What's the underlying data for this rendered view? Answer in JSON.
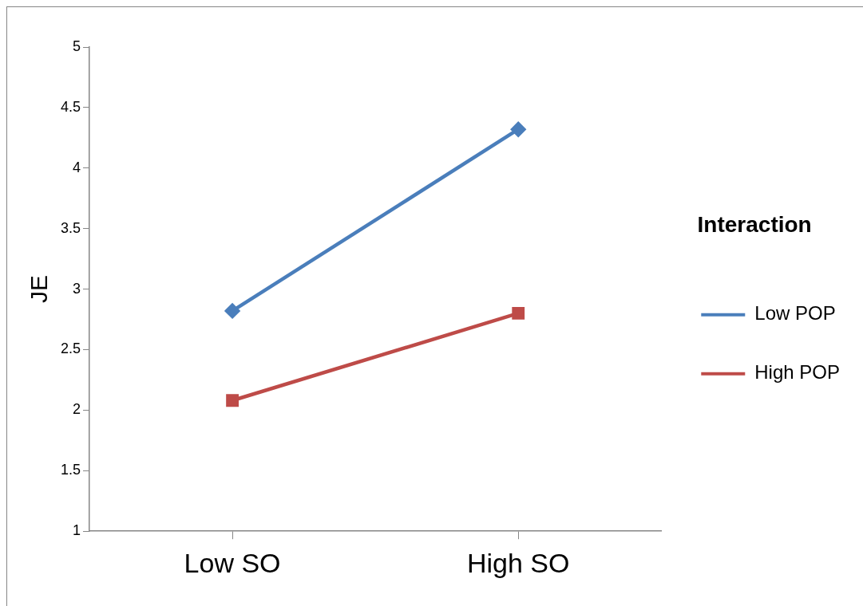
{
  "chart_data": {
    "type": "line",
    "ylabel": "JE",
    "legend_title": "Interaction",
    "categories": [
      "Low SO",
      "High SO"
    ],
    "series": [
      {
        "name": "Low POP",
        "color": "#4a7ebb",
        "values": [
          2.82,
          4.32
        ],
        "marker": "diamond"
      },
      {
        "name": "High POP",
        "color": "#be4b48",
        "values": [
          2.08,
          2.8
        ],
        "marker": "square"
      }
    ],
    "ylim": [
      1,
      5
    ],
    "yticks": [
      1,
      1.5,
      2,
      2.5,
      3,
      3.5,
      4,
      4.5,
      5
    ],
    "grid": false,
    "legend": "right"
  }
}
